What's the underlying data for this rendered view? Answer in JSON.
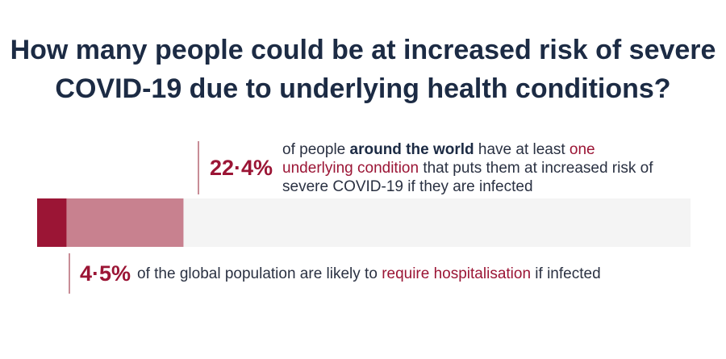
{
  "title": "How many people could be at increased risk of severe COVID-19 due to underlying health conditions?",
  "colors": {
    "background_track": "#f4f4f4",
    "increased_risk": "#c8818f",
    "high_risk": "#9b1535",
    "title": "#1c2b44",
    "accent_text": "#9b1535"
  },
  "chart_data": {
    "type": "bar",
    "orientation": "horizontal",
    "stacked": true,
    "xlim": [
      0,
      100
    ],
    "unit": "%",
    "series": [
      {
        "value": 4.5
      },
      {
        "value": 22.4
      }
    ],
    "annotations": [
      {
        "label": "22·4%",
        "parts": [
          {
            "text": "of people ",
            "style": "normal"
          },
          {
            "text": "around the world",
            "style": "bold"
          },
          {
            "text": " have at least ",
            "style": "normal"
          },
          {
            "text": "one underlying condition",
            "style": "accent"
          },
          {
            "text": " that puts them at increased risk of severe COVID-19 if they are infected",
            "style": "normal"
          }
        ]
      },
      {
        "label": "4·5%",
        "parts": [
          {
            "text": "of the global population are likely to ",
            "style": "normal"
          },
          {
            "text": "require hospitalisation",
            "style": "accent"
          },
          {
            "text": " if infected",
            "style": "normal"
          }
        ]
      }
    ]
  }
}
